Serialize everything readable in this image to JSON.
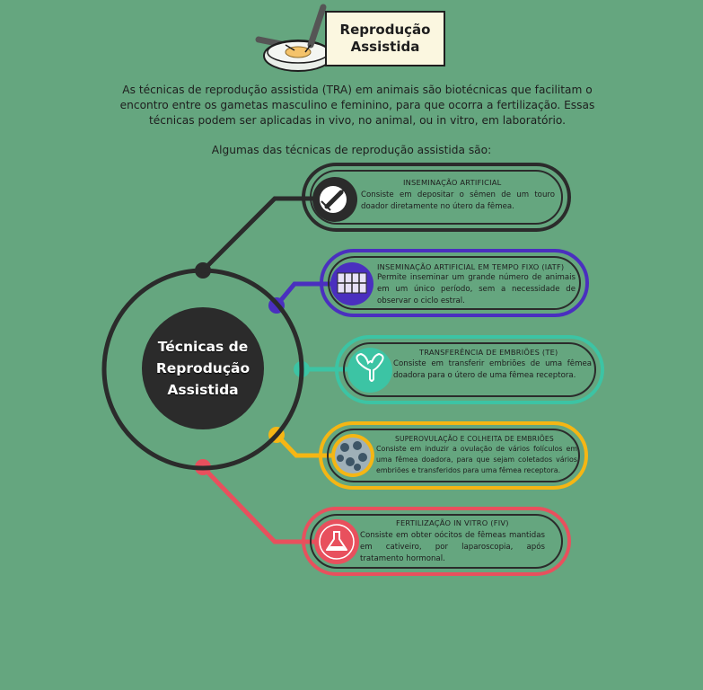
{
  "header": {
    "title_line1": "Reprodução",
    "title_line2": "Assistida"
  },
  "intro": {
    "line1": "As técnicas de reprodução assistida (TRA) em animais são biotécnicas que facilitam o",
    "line2": "encontro entre os gametas masculino e feminino, para que ocorra a fertilização. Essas",
    "line3": "técnicas podem ser aplicadas in vivo, no animal, ou in vitro, em laboratório."
  },
  "subtitle": "Algumas das técnicas de reprodução assistida são:",
  "center": {
    "line1": "Técnicas de",
    "line2": "Reprodução",
    "line3": "Assistida"
  },
  "colors": {
    "background": "#65a67f",
    "dark": "#2b2b2b",
    "purple": "#4a2fbf",
    "teal": "#3cc4a4",
    "yellow": "#f5b614",
    "red": "#e8505d"
  },
  "techniques": [
    {
      "title": "Inseminação artificial",
      "description": "Consiste em depositar o sêmen de um touro doador diretamente no útero da fêmea.",
      "icon": "syringe-icon"
    },
    {
      "title": "Inseminação artificial em tempo fixo (IATF)",
      "description": "Permite inseminar um grande número de animais em um único período, sem a necessidade de observar o ciclo estral.",
      "icon": "cattle-pen-icon"
    },
    {
      "title": "Transferência de embriões (TE)",
      "description": "Consiste em transferir embriões de uma fêmea doadora para o útero de uma fêmea receptora.",
      "icon": "uterus-icon"
    },
    {
      "title": "Superovulação e colheita de embriões",
      "description": "Consiste em induzir a ovulação de vários folículos em uma fêmea doadora, para que sejam coletados vários embriões e transferidos para uma fêmea receptora.",
      "icon": "cells-icon"
    },
    {
      "title": "Fertilização in vitro (FIV)",
      "description": "Consiste em obter oócitos de fêmeas mantidas em cativeiro, por laparoscopia, após tratamento hormonal.",
      "icon": "flask-icon"
    }
  ]
}
